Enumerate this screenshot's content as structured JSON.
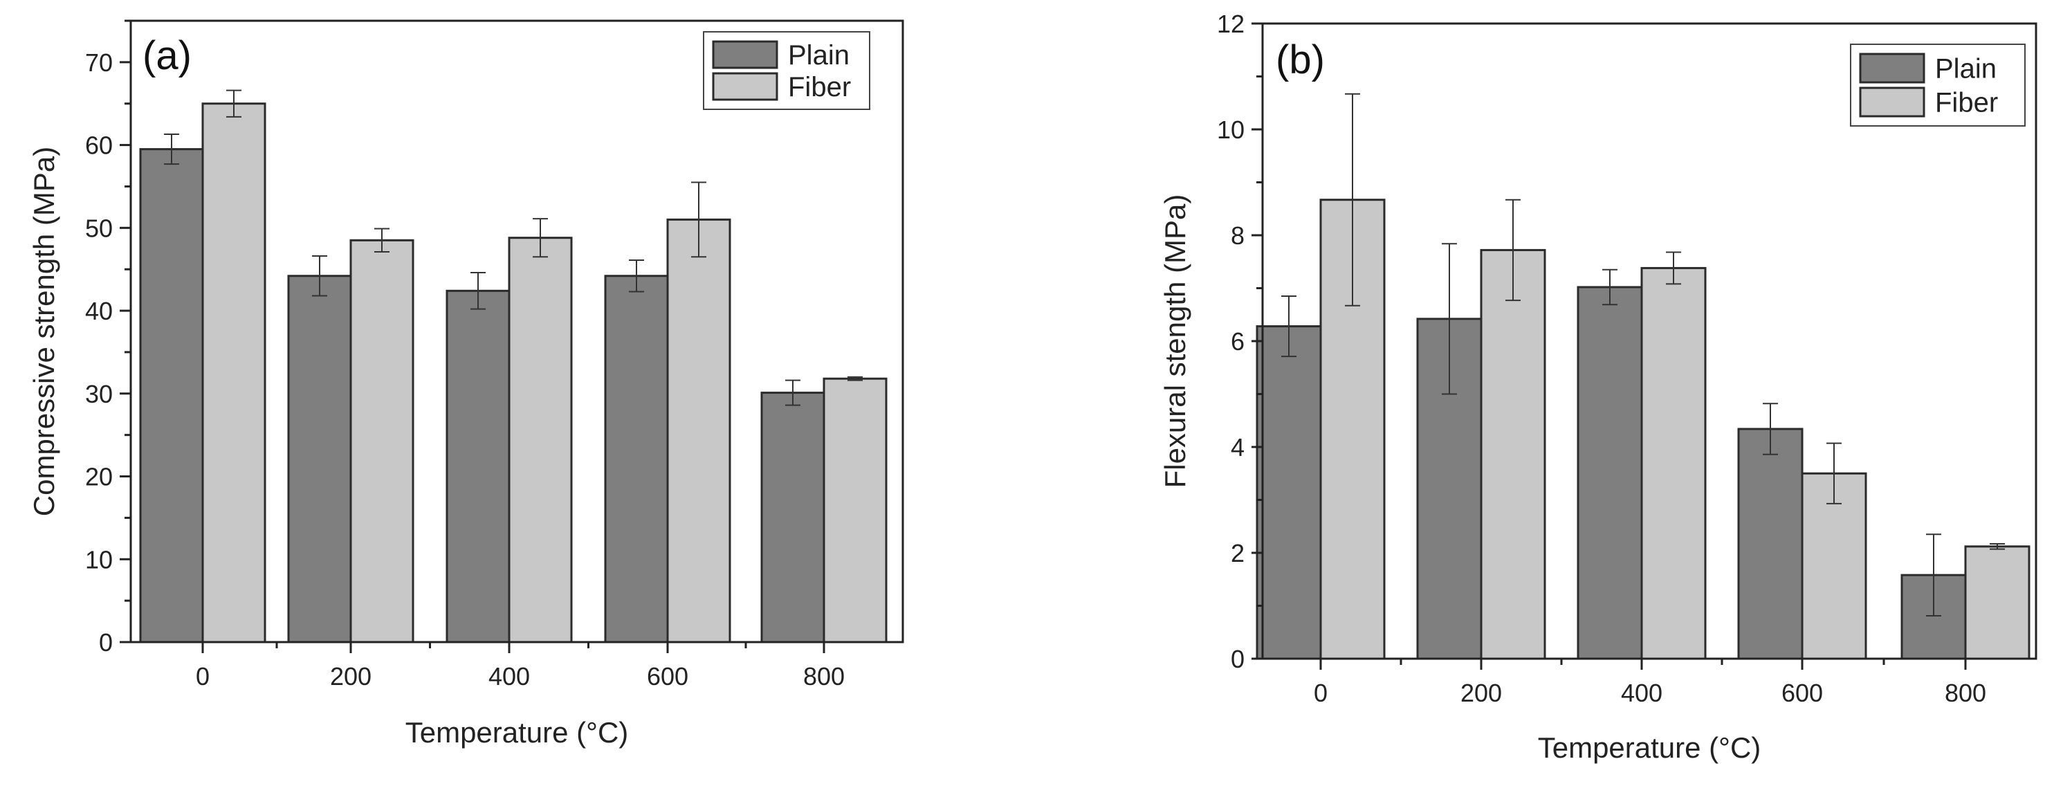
{
  "chart_data": [
    {
      "type": "bar",
      "panel_label": "(a)",
      "title": "",
      "xlabel": "Temperature (°C)",
      "ylabel": "Compressive strength (MPa)",
      "categories": [
        "0",
        "200",
        "400",
        "600",
        "800"
      ],
      "ylim": [
        0,
        75
      ],
      "yticks": [
        0,
        10,
        20,
        30,
        40,
        50,
        60,
        70
      ],
      "ytick_labels": [
        "0",
        "10",
        "20",
        "30",
        "40",
        "50",
        "60",
        "70"
      ],
      "y_minor_step": 5,
      "grid": false,
      "legend_position": "top-right",
      "series": [
        {
          "name": "Plain",
          "color": "#7f7f7f",
          "values": [
            59.5,
            44.2,
            42.4,
            44.2,
            30.1
          ],
          "errors": [
            1.8,
            2.4,
            2.2,
            1.9,
            1.5
          ]
        },
        {
          "name": "Fiber",
          "color": "#c8c8c8",
          "values": [
            65.0,
            48.5,
            48.8,
            51.0,
            31.8
          ],
          "errors": [
            1.6,
            1.4,
            2.3,
            4.5,
            0.2
          ]
        }
      ]
    },
    {
      "type": "bar",
      "panel_label": "(b)",
      "title": "",
      "xlabel": "Temperature (°C)",
      "ylabel": "Flexural stength (MPa)",
      "categories": [
        "0",
        "200",
        "400",
        "600",
        "800"
      ],
      "ylim": [
        0,
        12
      ],
      "yticks": [
        0,
        2,
        4,
        6,
        8,
        10,
        12
      ],
      "ytick_labels": [
        "0",
        "2",
        "4",
        "6",
        "8",
        "10",
        "12"
      ],
      "y_minor_step": 1,
      "grid": false,
      "legend_position": "top-right",
      "series": [
        {
          "name": "Plain",
          "color": "#7f7f7f",
          "values": [
            6.28,
            6.42,
            7.02,
            4.34,
            1.58
          ],
          "errors": [
            0.57,
            1.42,
            0.33,
            0.48,
            0.77
          ]
        },
        {
          "name": "Fiber",
          "color": "#c8c8c8",
          "values": [
            8.67,
            7.72,
            7.38,
            3.5,
            2.12
          ],
          "errors": [
            2.0,
            0.95,
            0.3,
            0.57,
            0.05
          ]
        }
      ]
    }
  ]
}
